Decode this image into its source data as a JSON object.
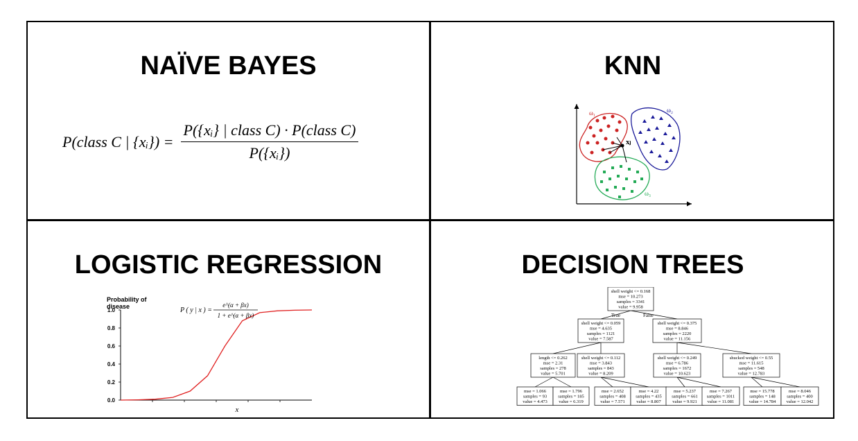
{
  "panels": {
    "naive_bayes": {
      "title": "NAÏVE BAYES",
      "formula_lhs": "P(class C | {xᵢ}) =",
      "formula_num": "P({xᵢ} | class C) · P(class C)",
      "formula_den": "P({xᵢ})"
    },
    "knn": {
      "title": "KNN",
      "label_w1": "ω₁",
      "label_w2": "ω₂",
      "label_w3": "ω₃",
      "label_xj": "xⱼ",
      "colors": {
        "class1": "#cc2222",
        "class2": "#1a1a99",
        "class3": "#22aa55"
      }
    },
    "logistic": {
      "title": "LOGISTIC REGRESSION",
      "y_label_1": "Probability of",
      "y_label_2": "disease",
      "formula_lhs": "P ( y | x ) =",
      "formula_num": "e^(α + βx)",
      "formula_den": "1 + e^(α + βx)",
      "curve_color": "#e02020"
    },
    "decision_tree": {
      "title": "DECISION TREES",
      "edge_true": "True",
      "edge_false": "False",
      "nodes": [
        {
          "lines": [
            "shell weight <= 0.168",
            "mse = 10.273",
            "samples = 3341",
            "value = 9.958"
          ]
        },
        {
          "lines": [
            "shell weight <= 0.059",
            "mse = 4.635",
            "samples = 1121",
            "value = 7.587"
          ]
        },
        {
          "lines": [
            "shell weight <= 0.375",
            "mse = 8.846",
            "samples = 2220",
            "value = 11.156"
          ]
        },
        {
          "lines": [
            "length <= 0.262",
            "mse = 2.31",
            "samples = 278",
            "value = 5.701"
          ]
        },
        {
          "lines": [
            "shell weight <= 0.112",
            "mse = 3.843",
            "samples = 843",
            "value = 8.209"
          ]
        },
        {
          "lines": [
            "shell weight <= 0.249",
            "mse = 6.786",
            "samples = 1672",
            "value = 10.623"
          ]
        },
        {
          "lines": [
            "shucked weight <= 0.55",
            "mse = 11.615",
            "samples = 548",
            "value = 12.783"
          ]
        },
        {
          "lines": [
            "mse = 1.066",
            "samples = 93",
            "value = 4.473"
          ]
        },
        {
          "lines": [
            "mse = 1.796",
            "samples = 185",
            "value = 6.319"
          ]
        },
        {
          "lines": [
            "mse = 2.652",
            "samples = 408",
            "value = 7.571"
          ]
        },
        {
          "lines": [
            "mse = 4.22",
            "samples = 435",
            "value = 8.807"
          ]
        },
        {
          "lines": [
            "mse = 5.237",
            "samples = 661",
            "value = 9.921"
          ]
        },
        {
          "lines": [
            "mse = 7.267",
            "samples = 1011",
            "value = 11.081"
          ]
        },
        {
          "lines": [
            "mse = 15.778",
            "samples = 148",
            "value = 14.784"
          ]
        },
        {
          "lines": [
            "mse = 8.046",
            "samples = 400",
            "value = 12.042"
          ]
        }
      ]
    }
  },
  "chart_data": {
    "type": "line",
    "x": [
      0,
      1,
      2,
      3,
      4,
      5,
      6,
      7,
      8,
      9,
      10,
      11
    ],
    "values": [
      0.0,
      0.003,
      0.01,
      0.03,
      0.1,
      0.27,
      0.6,
      0.88,
      0.97,
      0.99,
      0.997,
      1.0
    ],
    "xlabel": "x",
    "ylabel": "Probability of disease",
    "ylim": [
      0,
      1
    ],
    "yticks": [
      "0.0",
      "0.2",
      "0.4",
      "0.6",
      "0.8",
      "1.0"
    ]
  }
}
